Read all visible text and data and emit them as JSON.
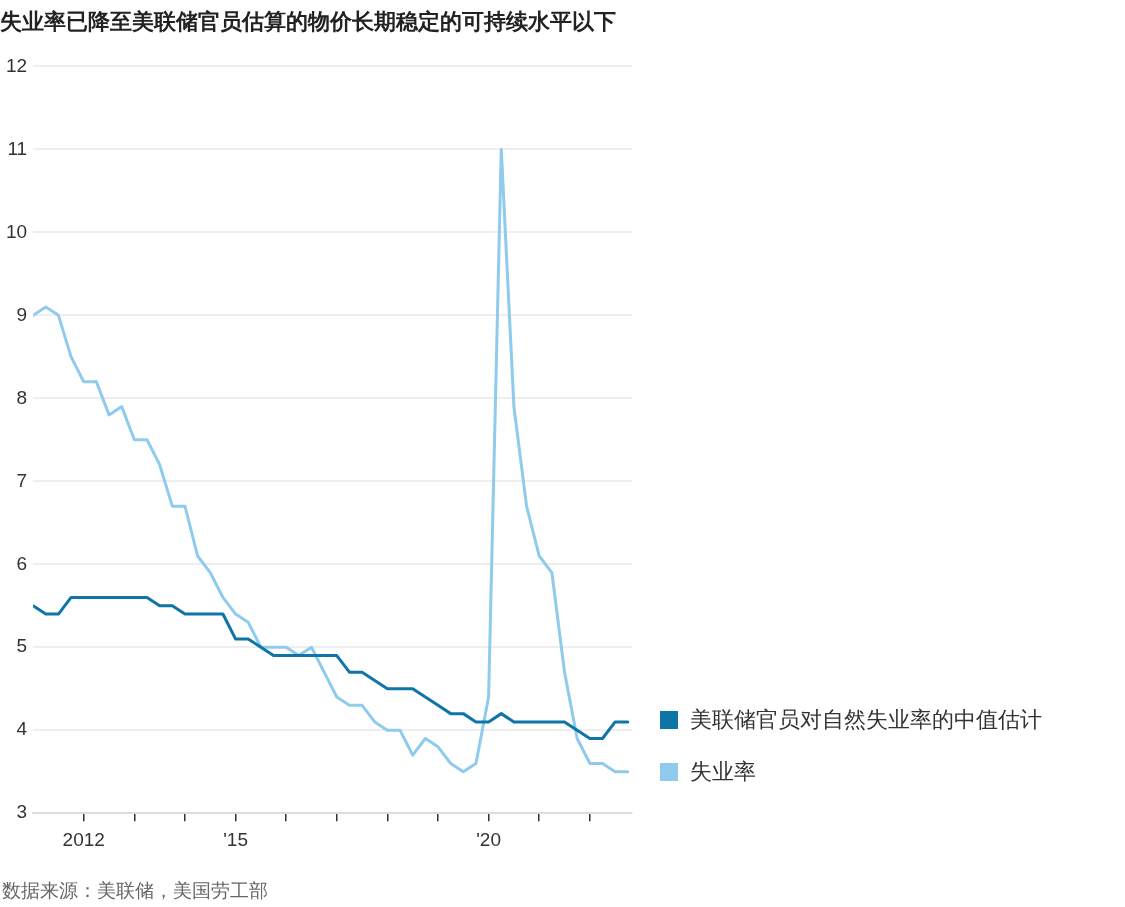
{
  "chart_data": {
    "type": "line",
    "title": "失业率已降至美联储官员估算的物价长期稳定的可持续水平以下",
    "x": [
      "2011-01",
      "2011-04",
      "2011-07",
      "2011-10",
      "2012-01",
      "2012-04",
      "2012-07",
      "2012-10",
      "2013-01",
      "2013-04",
      "2013-07",
      "2013-10",
      "2014-01",
      "2014-04",
      "2014-07",
      "2014-10",
      "2015-01",
      "2015-04",
      "2015-07",
      "2015-10",
      "2016-01",
      "2016-04",
      "2016-07",
      "2016-10",
      "2017-01",
      "2017-04",
      "2017-07",
      "2017-10",
      "2018-01",
      "2018-04",
      "2018-07",
      "2018-10",
      "2019-01",
      "2019-04",
      "2019-07",
      "2019-10",
      "2020-01",
      "2020-04",
      "2020-07",
      "2020-10",
      "2021-01",
      "2021-04",
      "2021-07",
      "2021-10",
      "2022-01",
      "2022-04",
      "2022-07",
      "2022-10"
    ],
    "series": [
      {
        "name": "美联储官员对自然失业率的中值估计",
        "color": "#0f75a6",
        "values": [
          5.5,
          5.4,
          5.4,
          5.6,
          5.6,
          5.6,
          5.6,
          5.6,
          5.6,
          5.6,
          5.5,
          5.5,
          5.4,
          5.4,
          5.4,
          5.4,
          5.1,
          5.1,
          5.0,
          4.9,
          4.9,
          4.9,
          4.9,
          4.9,
          4.9,
          4.7,
          4.7,
          4.6,
          4.5,
          4.5,
          4.5,
          4.4,
          4.3,
          4.2,
          4.2,
          4.1,
          4.1,
          4.2,
          4.1,
          4.1,
          4.1,
          4.1,
          4.1,
          4.0,
          3.9,
          3.9,
          4.1,
          4.1
        ]
      },
      {
        "name": "失业率",
        "color": "#8ecbec",
        "values": [
          9.0,
          9.1,
          9.0,
          8.5,
          8.2,
          8.2,
          7.8,
          7.9,
          7.5,
          7.5,
          7.2,
          6.7,
          6.7,
          6.1,
          5.9,
          5.6,
          5.4,
          5.3,
          5.0,
          5.0,
          5.0,
          4.9,
          5.0,
          4.7,
          4.4,
          4.3,
          4.3,
          4.1,
          4.0,
          4.0,
          3.7,
          3.9,
          3.8,
          3.6,
          3.5,
          3.6,
          4.4,
          11.0,
          7.9,
          6.7,
          6.1,
          5.9,
          4.7,
          3.9,
          3.6,
          3.6,
          3.5,
          3.5
        ]
      }
    ],
    "xlim": [
      "2011-01",
      "2022-11"
    ],
    "xticks": [
      {
        "value": "2012",
        "label": "2012"
      },
      {
        "value": "2013",
        "label": null
      },
      {
        "value": "2014",
        "label": null
      },
      {
        "value": "2015",
        "label": "'15"
      },
      {
        "value": "2016",
        "label": null
      },
      {
        "value": "2017",
        "label": null
      },
      {
        "value": "2018",
        "label": null
      },
      {
        "value": "2019",
        "label": null
      },
      {
        "value": "2020",
        "label": "'20"
      },
      {
        "value": "2021",
        "label": null
      },
      {
        "value": "2022",
        "label": null
      }
    ],
    "ylim": [
      3,
      12
    ],
    "yticks": [
      3,
      4,
      5,
      6,
      7,
      8,
      9,
      10,
      11,
      12
    ],
    "grid": "y",
    "legend": "right",
    "marker": "none",
    "line_style": "solid",
    "annotations": [
      "数据来源：美联储，美国劳工部"
    ]
  }
}
